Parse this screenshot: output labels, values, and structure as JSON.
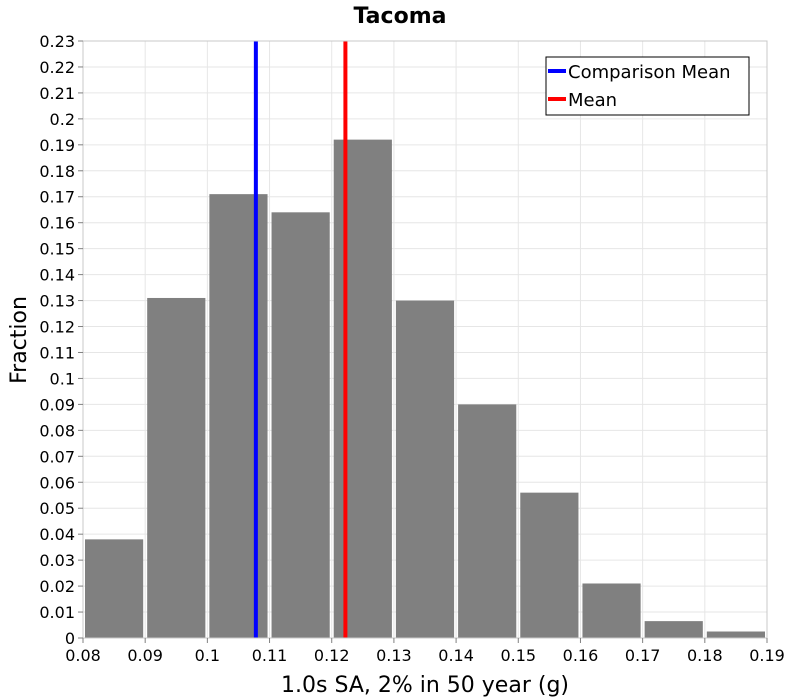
{
  "chart_data": {
    "type": "bar",
    "title": "Tacoma",
    "xlabel": "1.0s SA, 2% in 50 year (g)",
    "ylabel": "Fraction",
    "xlim": [
      0.08,
      0.19
    ],
    "ylim": [
      0,
      0.23
    ],
    "grid": true,
    "legend_position": "top-right",
    "bar_color": "#808080",
    "bins": [
      {
        "start": 0.08,
        "end": 0.09,
        "value": 0.038
      },
      {
        "start": 0.09,
        "end": 0.1,
        "value": 0.131
      },
      {
        "start": 0.1,
        "end": 0.11,
        "value": 0.171
      },
      {
        "start": 0.11,
        "end": 0.12,
        "value": 0.164
      },
      {
        "start": 0.12,
        "end": 0.13,
        "value": 0.192
      },
      {
        "start": 0.13,
        "end": 0.14,
        "value": 0.13
      },
      {
        "start": 0.14,
        "end": 0.15,
        "value": 0.09
      },
      {
        "start": 0.15,
        "end": 0.16,
        "value": 0.056
      },
      {
        "start": 0.16,
        "end": 0.17,
        "value": 0.021
      },
      {
        "start": 0.17,
        "end": 0.18,
        "value": 0.0065
      },
      {
        "start": 0.18,
        "end": 0.19,
        "value": 0.0025
      }
    ],
    "x_ticks": [
      "0.08",
      "0.09",
      "0.1",
      "0.11",
      "0.12",
      "0.13",
      "0.14",
      "0.15",
      "0.16",
      "0.17",
      "0.18",
      "0.19"
    ],
    "y_ticks": [
      "0",
      "0.01",
      "0.02",
      "0.03",
      "0.04",
      "0.05",
      "0.06",
      "0.07",
      "0.08",
      "0.09",
      "0.1",
      "0.11",
      "0.12",
      "0.13",
      "0.14",
      "0.15",
      "0.16",
      "0.17",
      "0.18",
      "0.19",
      "0.2",
      "0.21",
      "0.22",
      "0.23"
    ],
    "vertical_lines": [
      {
        "name": "Comparison Mean",
        "x": 0.1078,
        "color": "#0000ff"
      },
      {
        "name": "Mean",
        "x": 0.1222,
        "color": "#ff0000"
      }
    ]
  }
}
